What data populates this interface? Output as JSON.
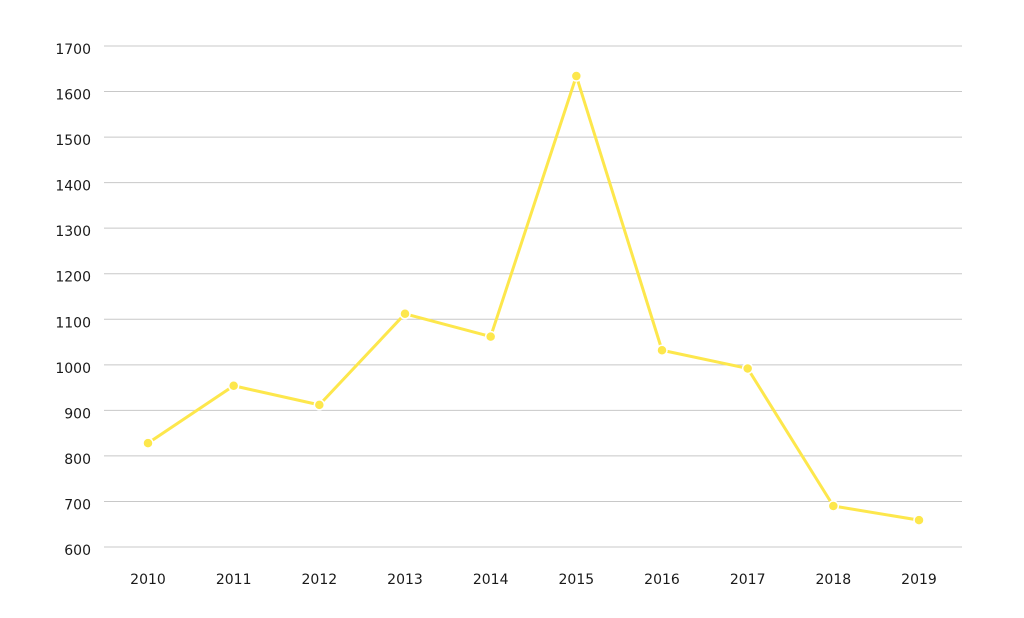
{
  "chart_data": {
    "type": "line",
    "x": [
      "2010",
      "2011",
      "2012",
      "2013",
      "2014",
      "2015",
      "2016",
      "2017",
      "2018",
      "2019"
    ],
    "series": [
      {
        "values": [
          828,
          954,
          912,
          1112,
          1062,
          1634,
          1032,
          992,
          690,
          659
        ],
        "color": "#fde74c"
      }
    ],
    "ylim": [
      600,
      1700
    ],
    "yticks": [
      600,
      700,
      800,
      900,
      1000,
      1100,
      1200,
      1300,
      1400,
      1500,
      1600,
      1700
    ],
    "grid": true,
    "legend": "none"
  }
}
